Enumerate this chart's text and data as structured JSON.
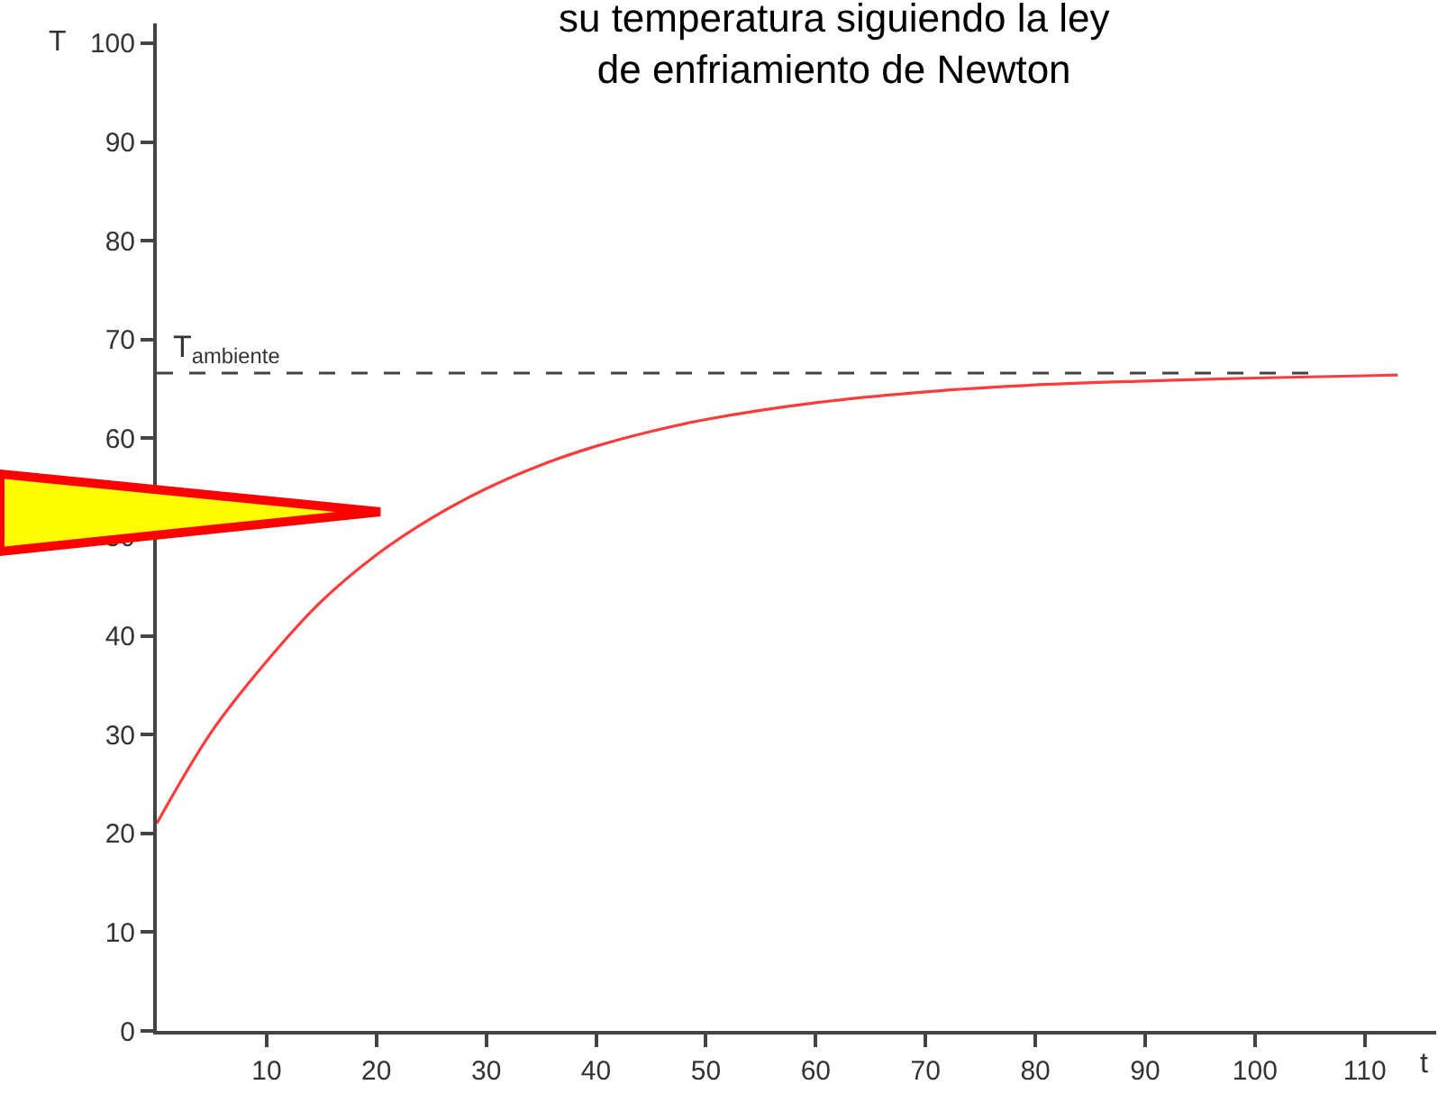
{
  "chart_data": {
    "type": "line",
    "title": "su temperatura siguiendo la ley\nde enfriamiento de Newton",
    "xlabel": "t",
    "ylabel": "T",
    "x": [
      0,
      5,
      10,
      15,
      20,
      25,
      30,
      35,
      40,
      45,
      50,
      60,
      70,
      80,
      90,
      100,
      113
    ],
    "series": [
      {
        "color": "#ff3b3b",
        "values": [
          21,
          30.3,
          37.4,
          43.5,
          48.2,
          51.9,
          54.9,
          57.3,
          59.2,
          60.7,
          61.9,
          63.6,
          64.7,
          65.4,
          65.8,
          66.1,
          66.4
        ]
      }
    ],
    "xlim": [
      0,
      116.5
    ],
    "ylim": [
      0,
      102
    ],
    "xticks": [
      10,
      20,
      30,
      40,
      50,
      60,
      70,
      80,
      90,
      100,
      110
    ],
    "yticks": [
      0,
      10,
      20,
      30,
      40,
      50,
      60,
      70,
      80,
      90,
      100
    ],
    "ref_lines": [
      {
        "axis": "y",
        "value": 66.6,
        "label": "T$_{ambiente}$",
        "color": "#444444",
        "line_style": "dashed"
      }
    ]
  }
}
